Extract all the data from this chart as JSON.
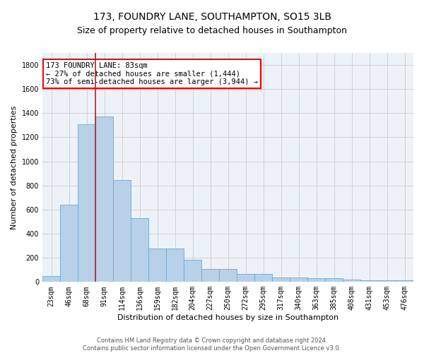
{
  "title": "173, FOUNDRY LANE, SOUTHAMPTON, SO15 3LB",
  "subtitle": "Size of property relative to detached houses in Southampton",
  "xlabel": "Distribution of detached houses by size in Southampton",
  "ylabel": "Number of detached properties",
  "categories": [
    "23sqm",
    "46sqm",
    "68sqm",
    "91sqm",
    "114sqm",
    "136sqm",
    "159sqm",
    "182sqm",
    "204sqm",
    "227sqm",
    "250sqm",
    "272sqm",
    "295sqm",
    "317sqm",
    "340sqm",
    "363sqm",
    "385sqm",
    "408sqm",
    "431sqm",
    "453sqm",
    "476sqm"
  ],
  "values": [
    50,
    640,
    1310,
    1370,
    845,
    530,
    275,
    275,
    185,
    105,
    105,
    65,
    65,
    40,
    40,
    30,
    30,
    20,
    15,
    15,
    15
  ],
  "bar_color": "#b8d0e8",
  "bar_edge_color": "#6aaad4",
  "vline_color": "red",
  "vline_x_index": 2.5,
  "annotation_text": "173 FOUNDRY LANE: 83sqm\n← 27% of detached houses are smaller (1,444)\n73% of semi-detached houses are larger (3,944) →",
  "annotation_box_color": "white",
  "annotation_box_edge_color": "red",
  "ylim": [
    0,
    1900
  ],
  "yticks": [
    0,
    200,
    400,
    600,
    800,
    1000,
    1200,
    1400,
    1600,
    1800
  ],
  "grid_color": "#cccccc",
  "background_color": "#edf2f9",
  "footer1": "Contains HM Land Registry data © Crown copyright and database right 2024.",
  "footer2": "Contains public sector information licensed under the Open Government Licence v3.0.",
  "title_fontsize": 10,
  "subtitle_fontsize": 9,
  "xlabel_fontsize": 8,
  "ylabel_fontsize": 8,
  "tick_fontsize": 7,
  "footer_fontsize": 6,
  "annot_fontsize": 7.5
}
